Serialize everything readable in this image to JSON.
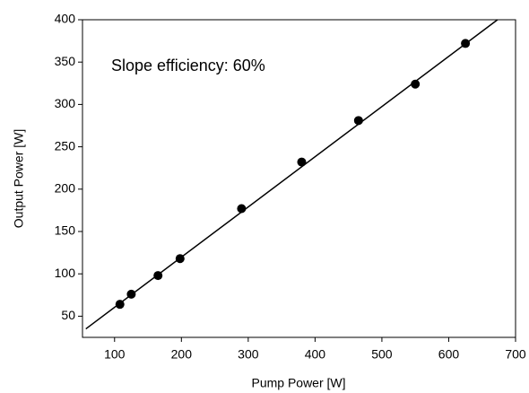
{
  "chart_data": {
    "type": "scatter",
    "annotation": "Slope efficiency: 60%",
    "xlabel": "Pump Power [W]",
    "ylabel": "Output Power [W]",
    "xlim": [
      52,
      700
    ],
    "ylim": [
      25,
      400
    ],
    "xticks": [
      100,
      200,
      300,
      400,
      500,
      600,
      700
    ],
    "yticks": [
      50,
      100,
      150,
      200,
      250,
      300,
      350,
      400
    ],
    "series": [
      {
        "color": "#000000",
        "x": [
          108,
          125,
          165,
          198,
          290,
          380,
          465,
          550,
          625
        ],
        "values": [
          64,
          76,
          98,
          118,
          177,
          232,
          281,
          324,
          372
        ]
      }
    ],
    "fit_line": {
      "color": "#000000",
      "x": [
        57,
        673
      ],
      "values": [
        35,
        400
      ]
    }
  }
}
